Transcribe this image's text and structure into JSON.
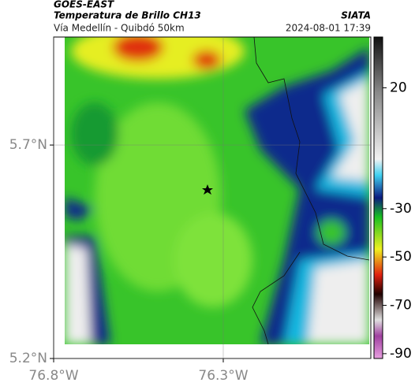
{
  "header": {
    "satellite": "GOES-EAST",
    "title": "Temperatura de Brillo CH13",
    "source": "SIATA",
    "subtitle": "Vía Medellín - Quibdó 50km",
    "datetime": "2024-08-01 17:39"
  },
  "map": {
    "lonlim": [
      -76.8,
      -75.865
    ],
    "latlim": [
      5.2,
      5.953
    ],
    "lonticks": [
      {
        "value": -76.8,
        "label": "76.8°W"
      },
      {
        "value": -76.3,
        "label": "76.3°W"
      }
    ],
    "latticks": [
      {
        "value": 5.7,
        "label": "5.7°N"
      },
      {
        "value": 5.2,
        "label": "5.2°N"
      }
    ],
    "grid": true
  },
  "colorbar": {
    "lim": [
      -92,
      41
    ],
    "ticks": [
      20,
      -30,
      -50,
      -70,
      -90
    ]
  }
}
